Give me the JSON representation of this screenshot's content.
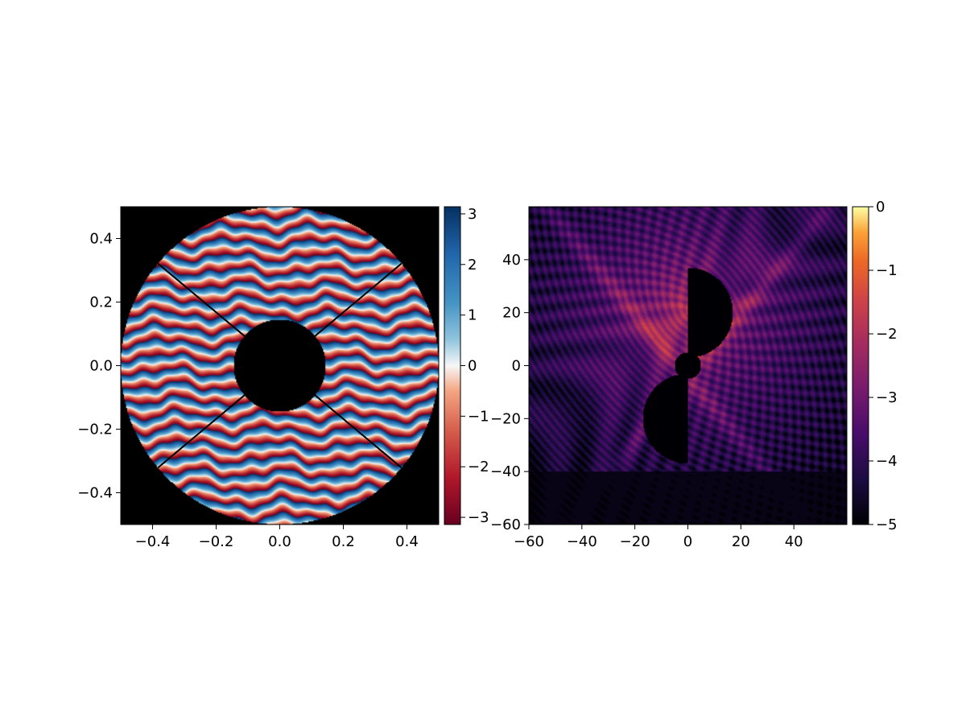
{
  "chart_data": [
    {
      "type": "heatmap",
      "description_role": "pupil phase map",
      "title": "",
      "xlabel": "",
      "ylabel": "",
      "xlim": [
        -0.5,
        0.5
      ],
      "ylim": [
        -0.5,
        0.5
      ],
      "x_ticks": [
        -0.4,
        -0.2,
        0.0,
        0.2,
        0.4
      ],
      "y_ticks": [
        -0.4,
        -0.2,
        0.0,
        0.2,
        0.4
      ],
      "x_tick_labels": [
        "−0.4",
        "−0.2",
        "0.0",
        "0.2",
        "0.4"
      ],
      "y_tick_labels": [
        "−0.4",
        "−0.2",
        "0.0",
        "0.2",
        "0.4"
      ],
      "aperture_outer_radius": 0.5,
      "aperture_inner_radius": 0.145,
      "spider_angles_deg": [
        40,
        140,
        220,
        320
      ],
      "fringe_count": 22,
      "fringe_tilt": 0.06,
      "colormap": "RdBu",
      "colorbar": {
        "min": -3.14159,
        "max": 3.14159,
        "ticks": [
          3,
          2,
          1,
          0,
          -1,
          -2,
          -3
        ],
        "tick_labels": [
          "3",
          "2",
          "1",
          "0",
          "−1",
          "−2",
          "−3"
        ]
      },
      "background_color": "#000000"
    },
    {
      "type": "heatmap",
      "description_role": "log10 PSF",
      "title": "",
      "xlabel": "",
      "ylabel": "",
      "xlim": [
        -60,
        60
      ],
      "ylim": [
        -60,
        60
      ],
      "x_ticks": [
        -60,
        -40,
        -20,
        0,
        20,
        40
      ],
      "y_ticks": [
        40,
        20,
        0,
        -20,
        -40,
        -60
      ],
      "x_tick_labels": [
        "−60",
        "−40",
        "−20",
        "0",
        "20",
        "40"
      ],
      "y_tick_labels": [
        "40",
        "20",
        "0",
        "−20",
        "−40",
        "−60"
      ],
      "peak": [
        0,
        20
      ],
      "dark_hole_regions": [
        {
          "shape": "half-disk-right",
          "center": [
            0,
            20
          ],
          "radius": 17
        },
        {
          "shape": "disk",
          "center": [
            0,
            0
          ],
          "radius": 5
        },
        {
          "shape": "half-disk-left",
          "center": [
            0,
            -20
          ],
          "radius": 17
        }
      ],
      "colormap": "inferno",
      "colorbar": {
        "min": -5,
        "max": 0,
        "ticks": [
          0,
          -1,
          -2,
          -3,
          -4,
          -5
        ],
        "tick_labels": [
          "0",
          "−1",
          "−2",
          "−3",
          "−4",
          "−5"
        ]
      }
    }
  ]
}
